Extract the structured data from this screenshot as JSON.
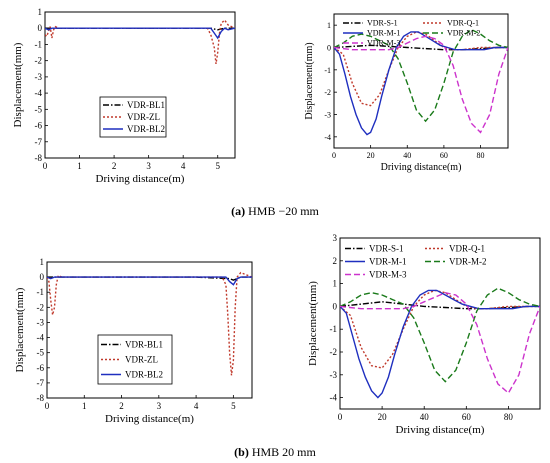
{
  "captions": [
    {
      "letter": "(a)",
      "text": " HMB −20 mm"
    },
    {
      "letter": "(b)",
      "text": " HMB 20 mm"
    }
  ],
  "colors": {
    "black": "#000000",
    "orange": "#c0392b",
    "blue": "#1f2fbf",
    "green": "#1a7a1a",
    "magenta": "#cc33cc"
  },
  "chart_data": [
    {
      "type": "line",
      "panel": "a-left",
      "xlabel": "Driving distance(m)",
      "ylabel": "Displacement(mm)",
      "xlim": [
        0,
        5.5
      ],
      "ylim": [
        -8,
        1
      ],
      "xticks": [
        0,
        1,
        2,
        3,
        4,
        5
      ],
      "yticks": [
        1,
        0,
        -1,
        -2,
        -3,
        -4,
        -5,
        -6,
        -7,
        -8
      ],
      "legend_position": "center-left",
      "series": [
        {
          "name": "VDR-BL1",
          "color": "#000000",
          "dash": "dashdot",
          "x": [
            0,
            0.2,
            0.5,
            1,
            2,
            3,
            4,
            4.8,
            5.0,
            5.2,
            5.5
          ],
          "y": [
            0,
            0,
            0,
            0,
            0,
            0,
            0,
            0,
            -0.1,
            0,
            0
          ]
        },
        {
          "name": "VDR-ZL",
          "color": "#c0392b",
          "dash": "dot",
          "x": [
            0,
            0.05,
            0.1,
            0.15,
            0.2,
            0.25,
            0.3,
            0.4,
            0.6,
            1,
            2,
            3,
            4,
            4.7,
            4.8,
            4.9,
            4.95,
            5.0,
            5.05,
            5.1,
            5.2,
            5.3,
            5.4,
            5.5
          ],
          "y": [
            -0.4,
            -0.5,
            -0.2,
            0.1,
            -0.6,
            -0.1,
            0.1,
            0,
            0,
            0,
            0,
            0,
            0,
            0,
            -0.4,
            -1.2,
            -2.2,
            -1.5,
            -0.3,
            0.3,
            0.5,
            0.2,
            0.1,
            0
          ]
        },
        {
          "name": "VDR-BL2",
          "color": "#1f2fbf",
          "dash": "solid",
          "x": [
            0,
            0.1,
            0.2,
            0.3,
            0.5,
            1,
            2,
            3,
            4,
            4.8,
            4.9,
            5.0,
            5.1,
            5.2,
            5.3,
            5.5
          ],
          "y": [
            0,
            -0.1,
            0,
            0,
            0,
            0,
            0,
            0,
            0,
            0,
            -0.3,
            -0.6,
            -0.2,
            0,
            -0.1,
            0
          ]
        }
      ]
    },
    {
      "type": "line",
      "panel": "a-right",
      "xlabel": "Driving distance(m)",
      "ylabel": "Displacement(mm)",
      "xlim": [
        0,
        95
      ],
      "ylim": [
        -4.5,
        1.5
      ],
      "xticks": [
        0,
        20,
        40,
        60,
        80
      ],
      "yticks": [
        1,
        0,
        -1,
        -2,
        -3,
        -4
      ],
      "legend_position": "top",
      "series": [
        {
          "name": "VDR-S-1",
          "color": "#000000",
          "dash": "dashdot",
          "x": [
            0,
            10,
            20,
            30,
            40,
            50,
            60,
            70,
            80,
            90,
            95
          ],
          "y": [
            0,
            0.05,
            0.1,
            0.05,
            0,
            -0.05,
            -0.1,
            -0.1,
            -0.05,
            0,
            0
          ]
        },
        {
          "name": "VDR-Q-1",
          "color": "#c0392b",
          "dash": "dot",
          "x": [
            0,
            5,
            10,
            15,
            20,
            25,
            30,
            35,
            40,
            45,
            50,
            55,
            60,
            65,
            70,
            80,
            90,
            95
          ],
          "y": [
            0,
            -0.3,
            -1.6,
            -2.5,
            -2.6,
            -2.1,
            -1.0,
            0,
            0.5,
            0.7,
            0.6,
            0.3,
            0,
            -0.1,
            -0.1,
            0,
            0,
            0
          ]
        },
        {
          "name": "VDR-M-1",
          "color": "#1f2fbf",
          "dash": "solid",
          "x": [
            0,
            3,
            6,
            9,
            12,
            15,
            18,
            20,
            23,
            26,
            30,
            34,
            38,
            42,
            46,
            50,
            54,
            58,
            62,
            66,
            70,
            76,
            82,
            88,
            95
          ],
          "y": [
            0,
            -0.3,
            -1.2,
            -2.2,
            -3.0,
            -3.6,
            -3.9,
            -3.8,
            -3.2,
            -2.2,
            -1.0,
            0,
            0.5,
            0.7,
            0.7,
            0.5,
            0.3,
            0.1,
            0,
            -0.1,
            -0.1,
            -0.1,
            -0.1,
            0,
            0
          ]
        },
        {
          "name": "VDR-M-2",
          "color": "#1a7a1a",
          "dash": "dash",
          "x": [
            0,
            5,
            10,
            15,
            20,
            25,
            30,
            35,
            40,
            45,
            50,
            55,
            60,
            65,
            70,
            75,
            80,
            85,
            90,
            95
          ],
          "y": [
            0,
            0.2,
            0.5,
            0.6,
            0.5,
            0.3,
            0.1,
            -0.5,
            -1.6,
            -2.8,
            -3.3,
            -2.8,
            -1.6,
            -0.2,
            0.5,
            0.8,
            0.6,
            0.3,
            0.1,
            0
          ]
        },
        {
          "name": "VDR-M-3",
          "color": "#cc33cc",
          "dash": "dash",
          "x": [
            0,
            10,
            20,
            30,
            35,
            40,
            45,
            50,
            55,
            60,
            65,
            70,
            75,
            80,
            85,
            90,
            95
          ],
          "y": [
            0,
            -0.1,
            -0.1,
            -0.1,
            0,
            0.2,
            0.4,
            0.5,
            0.4,
            0.1,
            -0.8,
            -2.3,
            -3.4,
            -3.8,
            -3.0,
            -1.2,
            0
          ]
        }
      ]
    },
    {
      "type": "line",
      "panel": "b-left",
      "xlabel": "Driving distance(m)",
      "ylabel": "Displacement(mm)",
      "xlim": [
        0,
        5.5
      ],
      "ylim": [
        -8,
        1
      ],
      "xticks": [
        0,
        1,
        2,
        3,
        4,
        5
      ],
      "yticks": [
        1,
        0,
        -1,
        -2,
        -3,
        -4,
        -5,
        -6,
        -7,
        -8
      ],
      "legend_position": "center-left",
      "series": [
        {
          "name": "VDR-BL1",
          "color": "#000000",
          "dash": "dashdot",
          "x": [
            0,
            0.5,
            1,
            2,
            3,
            4,
            4.9,
            5.0,
            5.2,
            5.5
          ],
          "y": [
            0,
            0,
            0,
            0,
            0,
            0,
            -0.1,
            -0.2,
            0,
            0
          ]
        },
        {
          "name": "VDR-ZL",
          "color": "#c0392b",
          "dash": "dot",
          "x": [
            0,
            0.05,
            0.1,
            0.15,
            0.2,
            0.25,
            0.3,
            0.4,
            0.6,
            1,
            2,
            3,
            4,
            4.7,
            4.8,
            4.85,
            4.9,
            4.95,
            5.0,
            5.05,
            5.1,
            5.2,
            5.3,
            5.4,
            5.5
          ],
          "y": [
            0,
            -0.3,
            -1.5,
            -2.5,
            -2.0,
            -0.5,
            0.1,
            0,
            0,
            0,
            0,
            0,
            0,
            0,
            -0.5,
            -2.5,
            -5.0,
            -6.5,
            -5.5,
            -2.0,
            0,
            0.3,
            0.2,
            0.1,
            0
          ]
        },
        {
          "name": "VDR-BL2",
          "color": "#1f2fbf",
          "dash": "solid",
          "x": [
            0,
            0.1,
            0.2,
            0.5,
            1,
            2,
            3,
            4,
            4.8,
            4.9,
            5.0,
            5.1,
            5.2,
            5.5
          ],
          "y": [
            0,
            -0.1,
            0,
            0,
            0,
            0,
            0,
            0,
            0,
            -0.3,
            -0.5,
            -0.1,
            0,
            0
          ]
        }
      ]
    },
    {
      "type": "line",
      "panel": "b-right",
      "xlabel": "Driving distance(m)",
      "ylabel": "Displacement(mm)",
      "xlim": [
        0,
        95
      ],
      "ylim": [
        -4.5,
        3
      ],
      "xticks": [
        0,
        20,
        40,
        60,
        80
      ],
      "yticks": [
        3,
        2,
        1,
        0,
        -1,
        -2,
        -3,
        -4
      ],
      "legend_position": "top",
      "series": [
        {
          "name": "VDR-S-1",
          "color": "#000000",
          "dash": "dashdot",
          "x": [
            0,
            10,
            20,
            30,
            40,
            50,
            60,
            70,
            80,
            90,
            95
          ],
          "y": [
            0,
            0.1,
            0.2,
            0.1,
            0,
            -0.05,
            -0.1,
            -0.1,
            -0.05,
            0,
            0
          ]
        },
        {
          "name": "VDR-Q-1",
          "color": "#c0392b",
          "dash": "dot",
          "x": [
            0,
            5,
            10,
            15,
            20,
            25,
            30,
            35,
            40,
            45,
            50,
            55,
            60,
            65,
            70,
            80,
            90,
            95
          ],
          "y": [
            0,
            -0.4,
            -1.8,
            -2.6,
            -2.7,
            -2.1,
            -1.0,
            0,
            0.5,
            0.7,
            0.6,
            0.3,
            0,
            -0.1,
            -0.1,
            0,
            0,
            0
          ]
        },
        {
          "name": "VDR-M-1",
          "color": "#1f2fbf",
          "dash": "solid",
          "x": [
            0,
            3,
            6,
            9,
            12,
            15,
            18,
            20,
            23,
            26,
            30,
            34,
            38,
            42,
            46,
            50,
            54,
            58,
            62,
            66,
            70,
            76,
            82,
            88,
            95
          ],
          "y": [
            0,
            -0.3,
            -1.3,
            -2.3,
            -3.1,
            -3.7,
            -4.0,
            -3.8,
            -3.1,
            -2.1,
            -0.9,
            0,
            0.5,
            0.7,
            0.7,
            0.5,
            0.3,
            0.1,
            0,
            -0.1,
            -0.1,
            -0.1,
            -0.1,
            0,
            0
          ]
        },
        {
          "name": "VDR-M-2",
          "color": "#1a7a1a",
          "dash": "dash",
          "x": [
            0,
            5,
            10,
            15,
            20,
            25,
            30,
            35,
            40,
            45,
            50,
            55,
            60,
            65,
            70,
            75,
            80,
            85,
            90,
            95
          ],
          "y": [
            0,
            0.2,
            0.5,
            0.6,
            0.5,
            0.3,
            0.1,
            -0.5,
            -1.6,
            -2.8,
            -3.3,
            -2.8,
            -1.6,
            -0.2,
            0.5,
            0.8,
            0.6,
            0.3,
            0.1,
            0
          ]
        },
        {
          "name": "VDR-M-3",
          "color": "#cc33cc",
          "dash": "dash",
          "x": [
            0,
            10,
            20,
            30,
            35,
            40,
            45,
            50,
            55,
            60,
            65,
            70,
            75,
            80,
            85,
            90,
            95
          ],
          "y": [
            0,
            -0.1,
            -0.1,
            -0.1,
            0,
            0.2,
            0.4,
            0.6,
            0.5,
            0.1,
            -0.8,
            -2.3,
            -3.4,
            -3.8,
            -3.0,
            -1.2,
            0
          ]
        }
      ]
    }
  ]
}
